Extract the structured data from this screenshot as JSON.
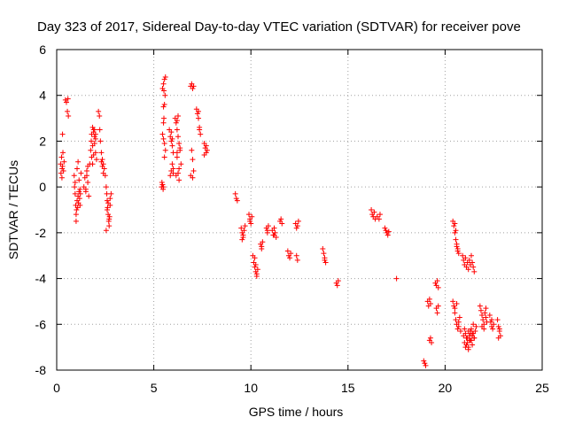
{
  "chart_data": {
    "type": "scatter",
    "title": "Day 323 of 2017, Sidereal Day-to-day VTEC variation (SDTVAR) for receiver pove",
    "xlabel": "GPS time / hours",
    "ylabel": "SDTVAR / TECUs",
    "xlim": [
      0,
      25
    ],
    "ylim": [
      -8,
      6
    ],
    "xticks": [
      "0",
      "5",
      "10",
      "15",
      "20",
      "25"
    ],
    "yticks": [
      "-8",
      "-6",
      "-4",
      "-2",
      "0",
      "2",
      "4",
      "6"
    ],
    "grid": true,
    "marker": "+",
    "color": "#ff0000",
    "series": [
      {
        "name": "SDTVAR",
        "x": [
          0.2,
          0.22,
          0.25,
          0.27,
          0.3,
          0.32,
          0.35,
          0.38,
          0.3,
          0.28,
          0.45,
          0.5,
          0.55,
          0.6,
          0.58,
          0.9,
          0.92,
          0.95,
          0.98,
          1.0,
          1.02,
          1.05,
          1.08,
          1.1,
          1.12,
          1.15,
          1.18,
          1.2,
          1.22,
          0.95,
          1.0,
          1.05,
          1.1,
          1.15,
          1.2,
          1.25,
          1.4,
          1.45,
          1.5,
          1.55,
          1.6,
          1.65,
          1.7,
          1.5,
          1.55,
          1.6,
          1.75,
          1.78,
          1.8,
          1.85,
          1.9,
          1.95,
          2.0,
          2.05,
          1.8,
          1.85,
          1.9,
          1.95,
          2.0,
          1.85,
          1.9,
          1.95,
          2.0,
          2.15,
          2.2,
          2.22,
          2.25,
          2.3,
          2.35,
          2.4,
          2.45,
          2.5,
          2.3,
          2.35,
          2.4,
          2.55,
          2.58,
          2.6,
          2.62,
          2.65,
          2.68,
          2.7,
          2.72,
          2.75,
          2.55,
          2.6,
          2.65,
          2.7,
          2.75,
          2.8,
          5.4,
          5.42,
          5.45,
          5.48,
          5.5,
          5.52,
          5.55,
          5.58,
          5.5,
          5.52,
          5.55,
          5.45,
          5.5,
          5.55,
          5.6,
          5.5,
          5.55,
          5.5,
          5.6,
          5.45,
          5.8,
          5.85,
          5.9,
          5.95,
          6.0,
          6.0,
          5.85,
          5.9,
          5.95,
          6.0,
          5.9,
          5.95,
          6.1,
          6.15,
          6.2,
          6.25,
          6.3,
          6.35,
          6.4,
          6.2,
          6.25,
          6.3,
          6.15,
          6.2,
          6.25,
          6.3,
          6.35,
          6.2,
          6.9,
          6.95,
          7.0,
          7.05,
          6.95,
          7.0,
          7.05,
          6.9,
          7.0,
          7.2,
          7.25,
          7.3,
          7.35,
          7.4,
          7.3,
          7.35,
          7.6,
          7.65,
          7.7,
          7.75,
          7.7,
          7.6,
          9.2,
          9.25,
          9.3,
          9.5,
          9.55,
          9.6,
          9.65,
          9.7,
          9.6,
          9.55,
          9.9,
          9.95,
          10.0,
          10.05,
          9.95,
          10.1,
          10.15,
          10.2,
          10.25,
          10.3,
          10.35,
          10.2,
          10.25,
          10.3,
          10.5,
          10.55,
          10.6,
          10.55,
          10.8,
          10.85,
          10.9,
          10.85,
          11.1,
          11.15,
          11.2,
          11.25,
          11.3,
          11.2,
          11.5,
          11.55,
          11.6,
          11.9,
          11.95,
          12.0,
          12.05,
          12.3,
          12.35,
          12.4,
          12.45,
          12.35,
          12.4,
          13.7,
          13.75,
          13.8,
          13.85,
          13.8,
          14.4,
          14.45,
          14.5,
          16.2,
          16.25,
          16.3,
          16.35,
          16.4,
          16.5,
          16.6,
          16.65,
          16.9,
          16.95,
          17.0,
          17.05,
          17.1,
          17.5,
          18.9,
          18.95,
          19.0,
          19.1,
          19.15,
          19.2,
          19.25,
          19.2,
          19.3,
          19.25,
          19.5,
          19.55,
          19.6,
          19.65,
          19.55,
          19.6,
          19.65,
          20.4,
          20.45,
          20.5,
          20.55,
          20.6,
          20.65,
          20.5,
          20.55,
          20.6,
          20.65,
          20.7,
          20.4,
          20.45,
          20.5,
          20.55,
          20.6,
          20.65,
          20.7,
          20.75,
          20.5,
          20.6,
          20.7,
          20.8,
          20.9,
          20.95,
          21.0,
          21.05,
          21.1,
          21.15,
          21.2,
          21.25,
          21.3,
          21.35,
          21.4,
          21.45,
          21.5,
          20.95,
          21.0,
          21.05,
          21.1,
          21.15,
          21.2,
          21.25,
          21.3,
          21.35,
          21.4,
          21.45,
          21.5,
          21.55,
          21.6,
          21.1,
          21.2,
          21.3,
          21.4,
          21.5,
          21.0,
          21.05,
          21.1,
          21.15,
          21.2,
          21.25,
          21.3,
          21.35,
          21.4,
          21.45,
          21.8,
          21.85,
          21.9,
          21.95,
          22.0,
          22.05,
          22.1,
          22.15,
          21.9,
          22.0,
          22.1,
          22.3,
          22.35,
          22.4,
          22.45,
          22.5,
          22.4,
          22.7,
          22.75,
          22.8,
          22.85,
          22.75,
          22.8
        ],
        "y": [
          1.0,
          0.6,
          1.3,
          0.4,
          0.9,
          1.5,
          0.7,
          1.1,
          2.3,
          0.8,
          3.8,
          3.7,
          3.3,
          3.1,
          3.85,
          0.5,
          0.0,
          -0.3,
          -0.8,
          -1.2,
          -1.0,
          -0.6,
          -0.9,
          -0.4,
          -0.7,
          -0.2,
          -0.5,
          -0.8,
          -0.3,
          0.2,
          -1.5,
          0.8,
          1.1,
          0.3,
          -0.1,
          0.6,
          0.0,
          0.4,
          -0.2,
          0.7,
          0.2,
          -0.4,
          1.0,
          -0.1,
          0.5,
          0.9,
          1.6,
          2.0,
          2.3,
          1.8,
          2.5,
          2.2,
          1.5,
          1.2,
          1.3,
          2.6,
          2.4,
          1.9,
          2.1,
          1.0,
          1.4,
          2.5,
          2.3,
          3.3,
          3.1,
          2.5,
          2.0,
          1.5,
          1.2,
          1.0,
          0.8,
          0.5,
          1.1,
          0.9,
          0.6,
          0.0,
          -0.3,
          -0.6,
          -0.9,
          -1.2,
          -1.5,
          -1.7,
          -1.3,
          -0.5,
          -1.9,
          -1.0,
          -0.7,
          -1.4,
          -0.8,
          -0.3,
          0.0,
          0.2,
          0.1,
          -0.1,
          4.5,
          4.2,
          4.7,
          4.0,
          3.5,
          3.0,
          3.6,
          2.3,
          2.8,
          1.9,
          1.6,
          2.1,
          1.3,
          0.0,
          4.8,
          4.3,
          2.5,
          2.2,
          2.0,
          1.8,
          1.5,
          0.8,
          0.5,
          0.7,
          1.0,
          0.6,
          2.4,
          2.1,
          3.0,
          2.8,
          2.5,
          2.2,
          1.9,
          1.6,
          1.0,
          1.3,
          0.6,
          0.3,
          0.5,
          2.9,
          3.1,
          0.8,
          1.7,
          1.5,
          4.4,
          4.5,
          4.3,
          4.4,
          1.6,
          1.2,
          0.7,
          0.5,
          0.4,
          3.4,
          3.2,
          3.0,
          2.6,
          2.3,
          3.3,
          2.5,
          1.9,
          1.7,
          1.5,
          1.6,
          1.8,
          1.4,
          -0.3,
          -0.5,
          -0.6,
          -1.8,
          -2.0,
          -2.2,
          -1.9,
          -1.7,
          -2.1,
          -2.3,
          -1.2,
          -1.4,
          -1.6,
          -1.3,
          -1.5,
          -3.0,
          -3.3,
          -3.5,
          -3.7,
          -3.9,
          -3.6,
          -3.1,
          -3.4,
          -3.8,
          -2.5,
          -2.6,
          -2.4,
          -2.7,
          -1.8,
          -1.9,
          -1.7,
          -2.0,
          -1.9,
          -2.1,
          -1.8,
          -2.0,
          -2.2,
          -2.1,
          -1.5,
          -1.4,
          -1.6,
          -2.8,
          -3.0,
          -3.1,
          -2.9,
          -1.6,
          -1.8,
          -1.7,
          -1.5,
          -3.0,
          -3.2,
          -2.7,
          -2.9,
          -3.1,
          -3.3,
          -3.2,
          -4.2,
          -4.3,
          -4.1,
          -1.0,
          -1.2,
          -1.3,
          -1.1,
          -1.4,
          -1.3,
          -1.4,
          -1.2,
          -1.8,
          -1.9,
          -2.0,
          -2.1,
          -1.95,
          -4.0,
          -7.6,
          -7.7,
          -7.8,
          -5.0,
          -5.2,
          -4.9,
          -5.1,
          -6.7,
          -6.8,
          -6.6,
          -4.2,
          -4.3,
          -4.1,
          -4.4,
          -5.3,
          -5.5,
          -5.2,
          -1.5,
          -1.7,
          -2.0,
          -2.3,
          -2.6,
          -2.8,
          -1.6,
          -1.9,
          -2.5,
          -2.7,
          -2.9,
          -5.0,
          -5.2,
          -5.5,
          -5.8,
          -6.0,
          -6.2,
          -5.9,
          -5.7,
          -5.3,
          -5.1,
          -6.1,
          -6.3,
          -3.0,
          -3.2,
          -3.4,
          -3.1,
          -3.5,
          -3.3,
          -3.6,
          -3.2,
          -3.4,
          -3.0,
          -3.3,
          -3.5,
          -3.7,
          -6.5,
          -6.8,
          -7.0,
          -6.9,
          -6.6,
          -6.3,
          -6.7,
          -6.4,
          -6.2,
          -6.5,
          -6.0,
          -6.6,
          -6.3,
          -6.1,
          -6.9,
          -7.1,
          -6.7,
          -6.4,
          -6.6,
          -6.2,
          -6.4,
          -6.6,
          -6.8,
          -7.0,
          -6.5,
          -6.3,
          -6.7,
          -6.9,
          -6.4,
          -5.2,
          -5.4,
          -5.6,
          -5.8,
          -6.0,
          -5.5,
          -5.7,
          -5.9,
          -6.1,
          -6.2,
          -5.3,
          -5.6,
          -5.9,
          -6.1,
          -6.2,
          -6.0,
          -5.8,
          -5.8,
          -6.1,
          -6.3,
          -6.5,
          -6.6,
          -6.2
        ]
      }
    ]
  }
}
